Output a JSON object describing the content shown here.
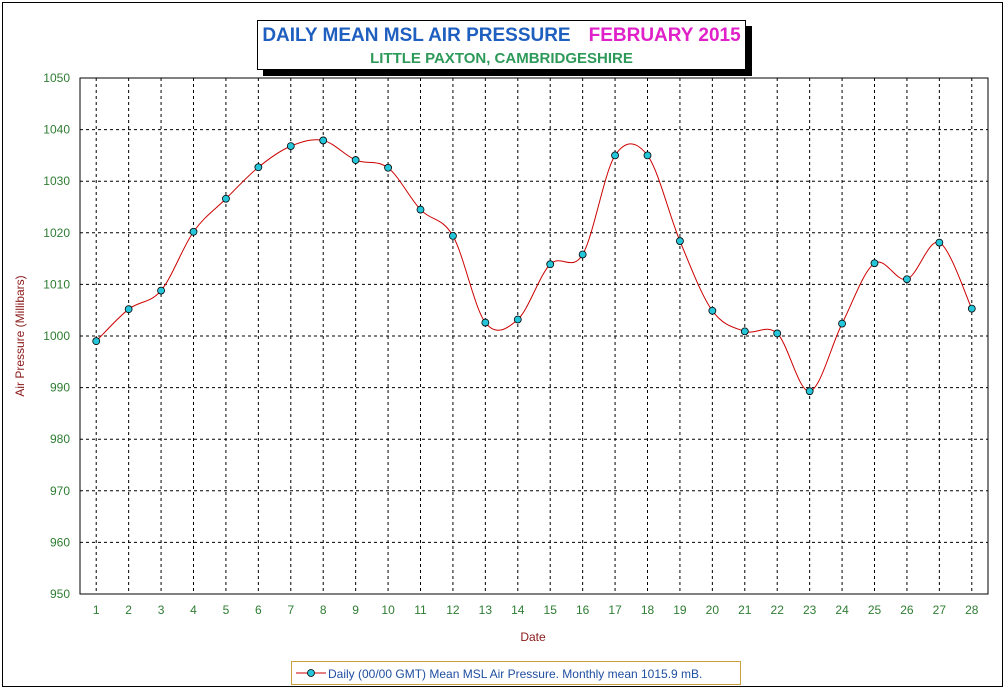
{
  "title": {
    "main": "DAILY MEAN MSL AIR PRESSURE",
    "period": "FEBRUARY 2015",
    "location": "LITTLE PAXTON, CAMBRIDGESHIRE"
  },
  "legend": {
    "label": "Daily (00/00 GMT) Mean MSL Air Pressure. Monthly mean 1015.9 mB."
  },
  "colors": {
    "line": "#cc0000",
    "marker_fill": "#26c6da",
    "grid": "#000000",
    "tick_text": "#2e7d32",
    "axis_label": "#8b1a1a"
  },
  "chart_data": {
    "type": "line",
    "xlabel": "Date",
    "ylabel": "Air Pressure (Millibars)",
    "ylim": [
      950,
      1050
    ],
    "y_ticks": [
      950,
      960,
      970,
      980,
      990,
      1000,
      1010,
      1020,
      1030,
      1040,
      1050
    ],
    "x": [
      1,
      2,
      3,
      4,
      5,
      6,
      7,
      8,
      9,
      10,
      11,
      12,
      13,
      14,
      15,
      16,
      17,
      18,
      19,
      20,
      21,
      22,
      23,
      24,
      25,
      26,
      27,
      28
    ],
    "series": [
      {
        "name": "Daily (00/00 GMT) Mean MSL Air Pressure",
        "values": [
          999.0,
          1005.2,
          1008.8,
          1020.2,
          1026.6,
          1032.7,
          1036.8,
          1037.9,
          1034.1,
          1032.6,
          1024.5,
          1019.4,
          1002.6,
          1003.2,
          1013.9,
          1015.8,
          1035.0,
          1035.0,
          1018.4,
          1004.9,
          1000.9,
          1000.5,
          989.3,
          1002.4,
          1014.1,
          1011.0,
          1018.1,
          1005.3
        ]
      }
    ],
    "grid": true,
    "legend_position": "bottom"
  }
}
